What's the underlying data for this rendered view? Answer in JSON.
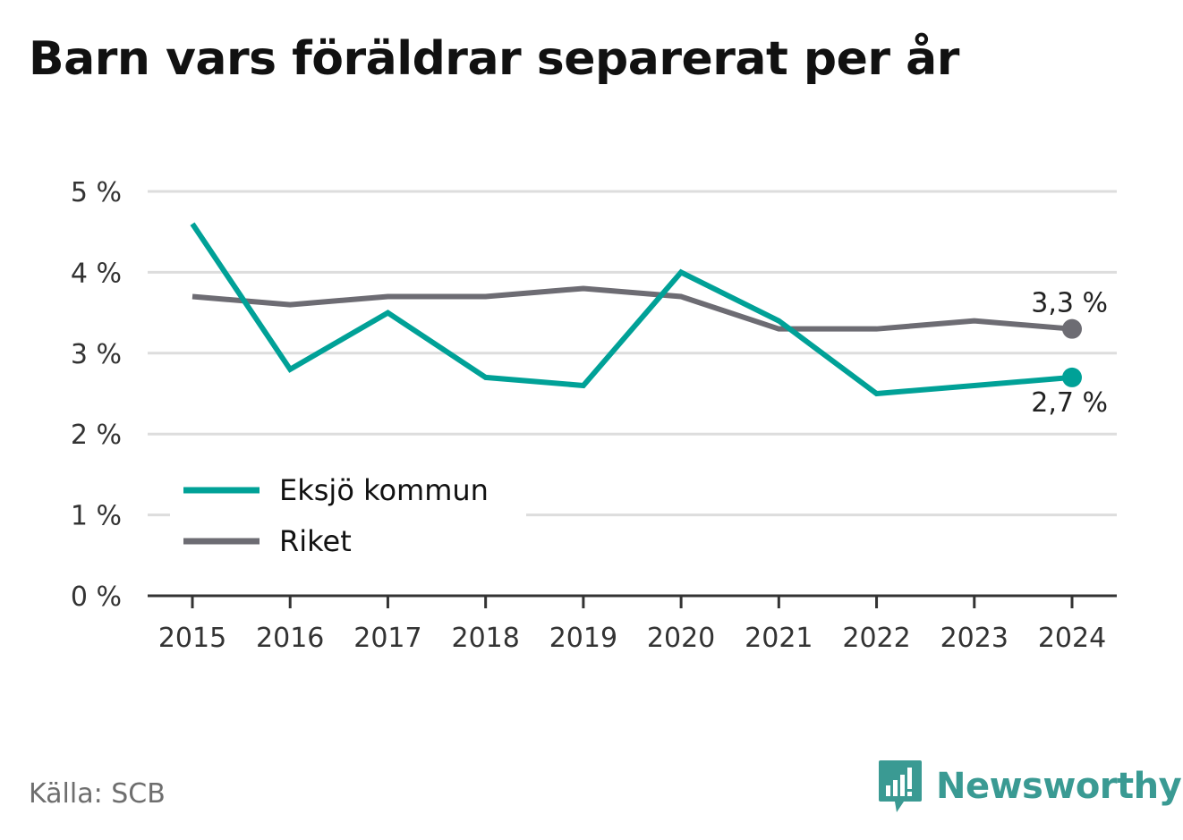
{
  "title": "Barn vars föräldrar separerat per år",
  "source": "Källa: SCB",
  "brand": {
    "name": "Newsworthy",
    "icon": "bar-chart-speech-bubble-icon"
  },
  "colors": {
    "eksjo": "#00a197",
    "riket": "#6d6c73",
    "grid": "#dddddd",
    "axis": "#333333",
    "brand": "#3a9a93"
  },
  "chart_data": {
    "type": "line",
    "title": "Barn vars föräldrar separerat per år",
    "categories": [
      "2015",
      "2016",
      "2017",
      "2018",
      "2019",
      "2020",
      "2021",
      "2022",
      "2023",
      "2024"
    ],
    "ylim": [
      0,
      5
    ],
    "yticks": [
      0,
      1,
      2,
      3,
      4,
      5
    ],
    "ytick_labels": [
      "0 %",
      "1 %",
      "2 %",
      "3 %",
      "4 %",
      "5 %"
    ],
    "grid": true,
    "legend_position": "bottom-left",
    "series": [
      {
        "name": "Eksjö kommun",
        "color": "#00a197",
        "values": [
          4.6,
          2.8,
          3.5,
          2.7,
          2.6,
          4.0,
          3.4,
          2.5,
          2.6,
          2.7
        ],
        "end_label": "2,7 %"
      },
      {
        "name": "Riket",
        "color": "#6d6c73",
        "values": [
          3.7,
          3.6,
          3.7,
          3.7,
          3.8,
          3.7,
          3.3,
          3.3,
          3.4,
          3.3
        ],
        "end_label": "3,3 %"
      }
    ]
  }
}
